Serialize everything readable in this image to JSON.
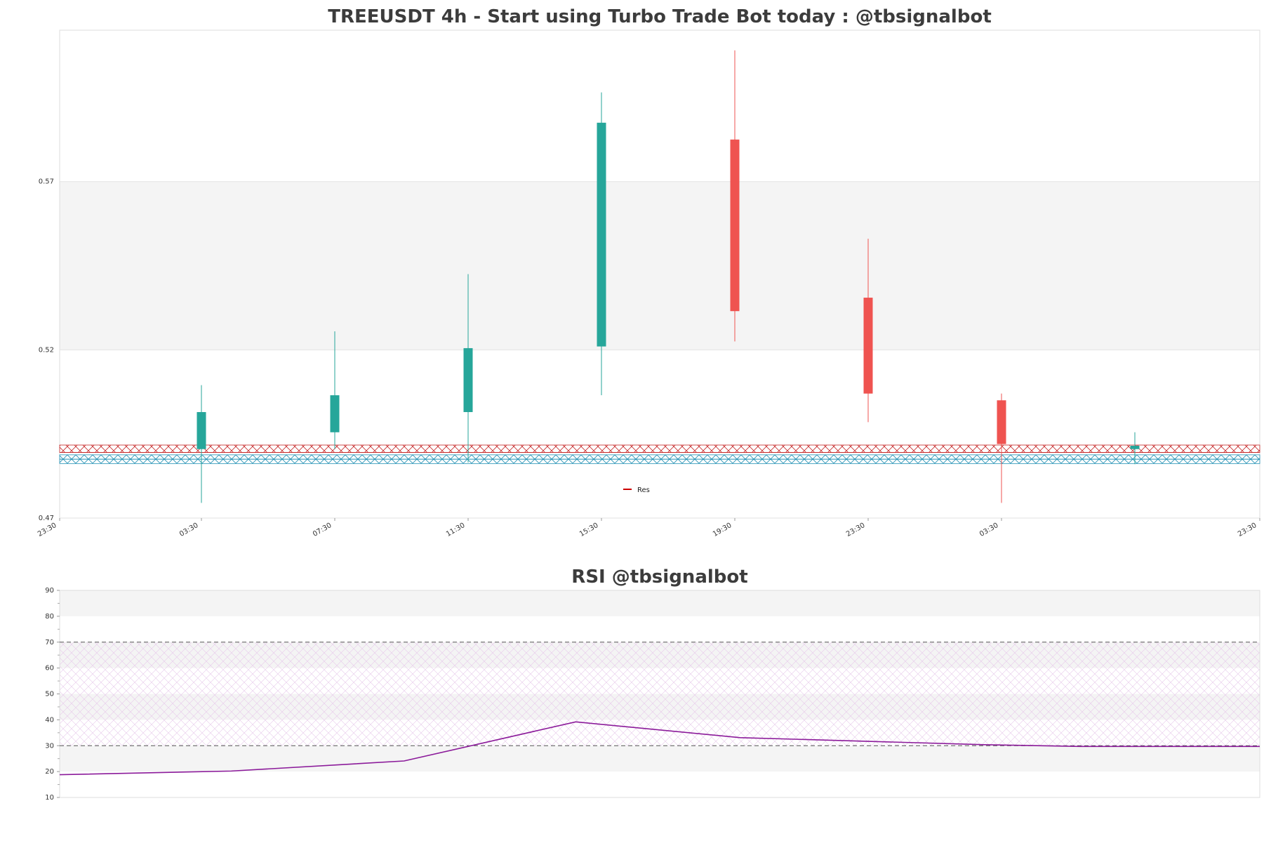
{
  "chart_data": [
    {
      "type": "candlestick",
      "title": "TREEUSDT 4h - Start using Turbo Trade Bot today : @tbsignalbot",
      "ylim": [
        0.47,
        0.615
      ],
      "y_ticks": [
        "0.47",
        "0.52",
        "0.57"
      ],
      "x_tick_labels": [
        "23:30",
        "03:30",
        "07:30",
        "11:30",
        "15:30",
        "19:30",
        "23:30",
        "03:30",
        "23:30"
      ],
      "candles": [
        {
          "x": "03:30",
          "open": 0.4905,
          "high": 0.5095,
          "low": 0.4745,
          "close": 0.5015
        },
        {
          "x": "07:30",
          "open": 0.4955,
          "high": 0.5255,
          "low": 0.4905,
          "close": 0.5065
        },
        {
          "x": "11:30",
          "open": 0.5015,
          "high": 0.5425,
          "low": 0.4865,
          "close": 0.5205
        },
        {
          "x": "15:30",
          "open": 0.521,
          "high": 0.5965,
          "low": 0.5065,
          "close": 0.5875
        },
        {
          "x": "19:30",
          "open": 0.5825,
          "high": 0.609,
          "low": 0.5225,
          "close": 0.5315
        },
        {
          "x": "23:30",
          "open": 0.5355,
          "high": 0.553,
          "low": 0.4985,
          "close": 0.507
        },
        {
          "x": "03:30",
          "open": 0.505,
          "high": 0.507,
          "low": 0.4745,
          "close": 0.492
        },
        {
          "x": "",
          "open": 0.4905,
          "high": 0.4955,
          "low": 0.486,
          "close": 0.4915
        }
      ],
      "shaded_band": [
        0.52,
        0.57
      ],
      "resistance_zone": [
        0.4895,
        0.4917
      ],
      "support_zone": [
        0.4862,
        0.4888
      ],
      "resistance_line": 0.4895,
      "support_line": 0.4875,
      "legend": [
        {
          "label": "Res",
          "color": "#cc0000"
        }
      ],
      "colors": {
        "up": "#26a69a",
        "down": "#ef5350",
        "resistance": "#c62828",
        "support": "#1f8fb3"
      }
    },
    {
      "type": "line",
      "title": "RSI @tbsignalbot",
      "ylim": [
        10,
        90
      ],
      "y_ticks": [
        10,
        20,
        30,
        40,
        50,
        60,
        70,
        80,
        90
      ],
      "reference_lines": [
        30,
        70
      ],
      "series": [
        {
          "values": [
            18.8,
            20.2,
            24.1,
            39.2,
            33.1,
            30.4,
            29.7,
            29.7
          ],
          "color": "#8b1a9a"
        }
      ],
      "x_positions": [
        0.0,
        0.143,
        0.287,
        0.43,
        0.567,
        0.77,
        0.85,
        1.0
      ]
    }
  ]
}
